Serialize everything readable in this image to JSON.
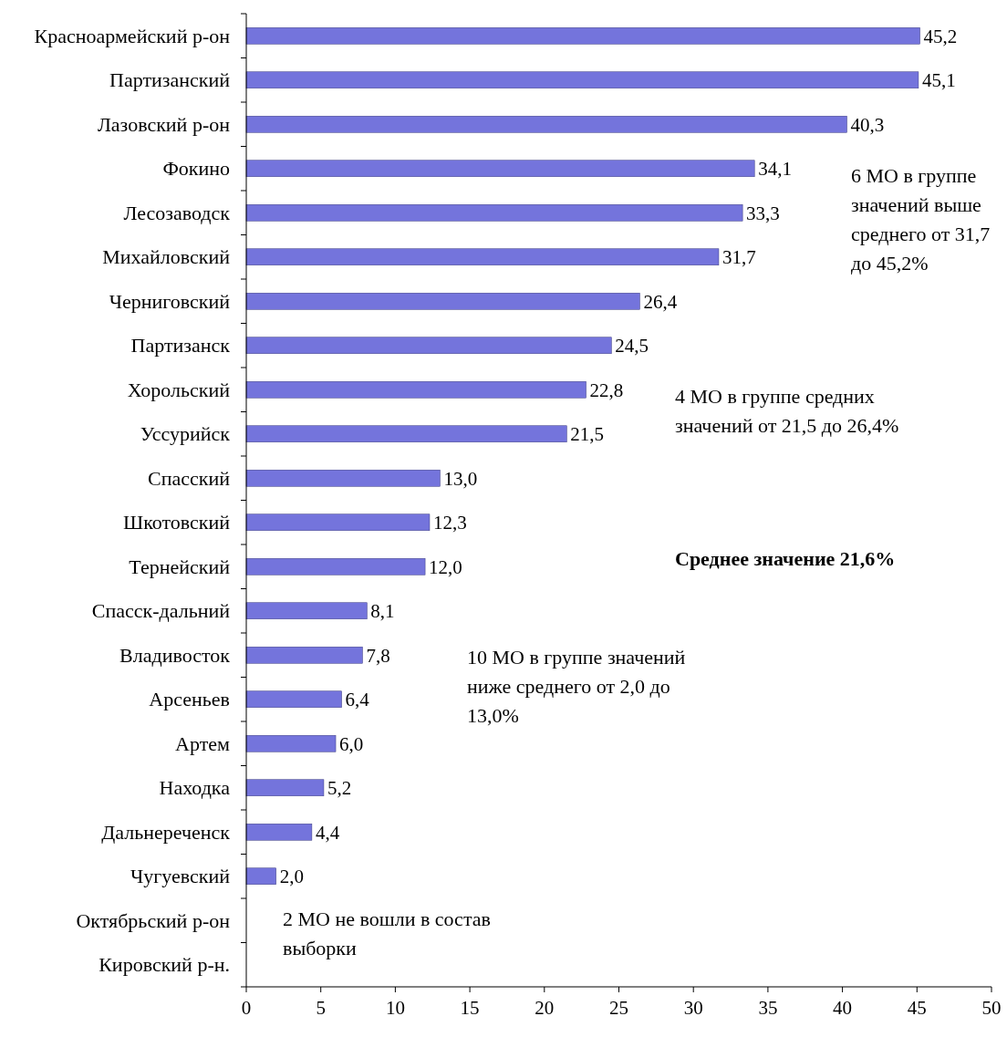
{
  "chart_data": {
    "type": "bar",
    "orientation": "horizontal",
    "categories": [
      "Красноармейский р-он",
      "Партизанский",
      "Лазовский р-он",
      "Фокино",
      "Лесозаводск",
      "Михайловский",
      "Черниговский",
      "Партизанск",
      "Хорольский",
      "Уссурийск",
      "Спасский",
      "Шкотовский",
      "Тернейский",
      "Спасск-дальний",
      "Владивосток",
      "Арсеньев",
      "Артем",
      "Находка",
      "Дальнереченск",
      "Чугуевский",
      "Октябрьский р-он",
      "Кировский р-н."
    ],
    "values": [
      45.2,
      45.1,
      40.3,
      34.1,
      33.3,
      31.7,
      26.4,
      24.5,
      22.8,
      21.5,
      13.0,
      12.3,
      12.0,
      8.1,
      7.8,
      6.4,
      6.0,
      5.2,
      4.4,
      2.0,
      null,
      null
    ],
    "value_labels": [
      "45,2",
      "45,1",
      "40,3",
      "34,1",
      "33,3",
      "31,7",
      "26,4",
      "24,5",
      "22,8",
      "21,5",
      "13,0",
      "12,3",
      "12,0",
      "8,1",
      "7,8",
      "6,4",
      "6,0",
      "5,2",
      "4,4",
      "2,0",
      null,
      null
    ],
    "color": "#7474dc",
    "xlim": [
      0,
      50
    ],
    "xticks": [
      0,
      5,
      10,
      15,
      20,
      25,
      30,
      35,
      40,
      45,
      50
    ],
    "annotations": [
      "6 МО в группе значений выше среднего от 31,7 до 45,2%",
      "4 МО в группе средних значений от 21,5 до 26,4%",
      "Среднее значение 21,6%",
      "10 МО в группе значений ниже среднего от 2,0 до 13,0%",
      "2 МО не вошли в состав выборки"
    ]
  }
}
